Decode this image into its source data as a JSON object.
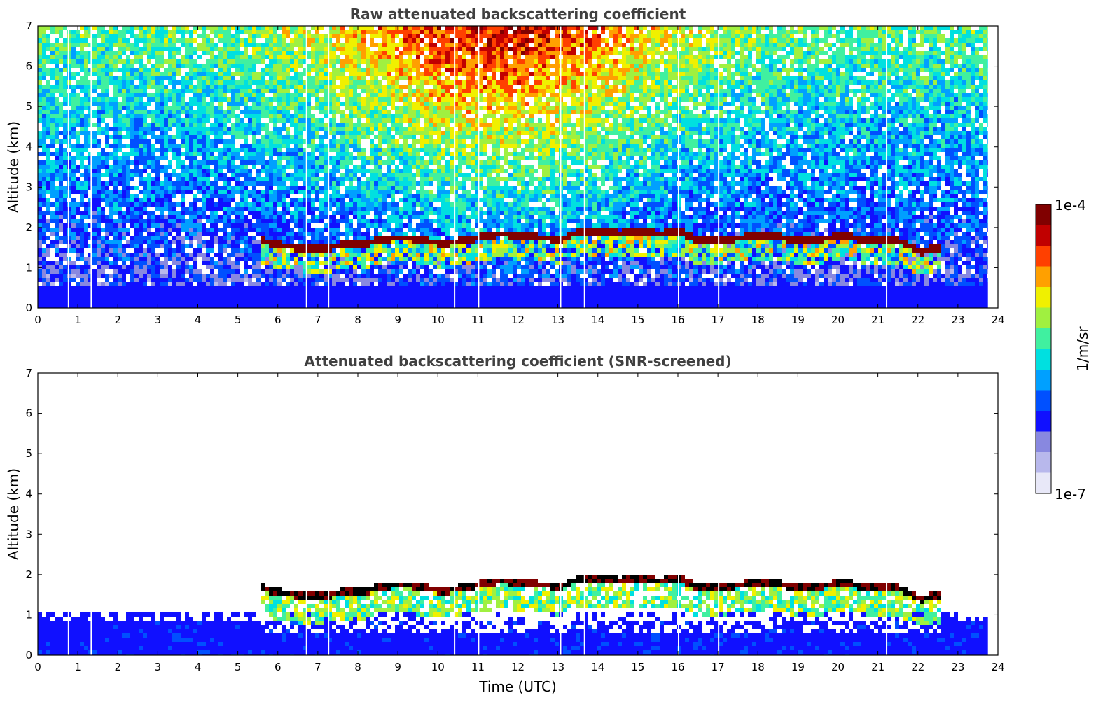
{
  "chart_data": [
    {
      "type": "heatmap",
      "title": "Raw attenuated backscattering coefficient",
      "xlabel": "",
      "ylabel": "Altitude (km)",
      "xlim": [
        0,
        24
      ],
      "ylim": [
        0,
        7
      ],
      "xticks": [
        "0",
        "1",
        "2",
        "3",
        "4",
        "5",
        "6",
        "7",
        "8",
        "9",
        "10",
        "11",
        "12",
        "13",
        "14",
        "15",
        "16",
        "17",
        "18",
        "19",
        "20",
        "21",
        "22",
        "23",
        "24"
      ],
      "yticks": [
        "0",
        "1",
        "2",
        "3",
        "4",
        "5",
        "6",
        "7"
      ],
      "data_end_time": 23.75,
      "data_gaps": [
        0.75,
        1.32,
        6.7,
        7.25,
        10.4,
        11.0,
        13.05,
        13.65,
        16.0,
        17.0,
        21.2
      ],
      "cloud_base_km": [
        {
          "t": 5.5,
          "alt": 1.75
        },
        {
          "t": 6.0,
          "alt": 1.6
        },
        {
          "t": 6.5,
          "alt": 1.55
        },
        {
          "t": 7.0,
          "alt": 1.5
        },
        {
          "t": 7.5,
          "alt": 1.6
        },
        {
          "t": 8.0,
          "alt": 1.6
        },
        {
          "t": 8.5,
          "alt": 1.75
        },
        {
          "t": 9.0,
          "alt": 1.8
        },
        {
          "t": 9.5,
          "alt": 1.75
        },
        {
          "t": 10.0,
          "alt": 1.65
        },
        {
          "t": 10.5,
          "alt": 1.7
        },
        {
          "t": 11.0,
          "alt": 1.8
        },
        {
          "t": 11.5,
          "alt": 1.9
        },
        {
          "t": 12.0,
          "alt": 1.85
        },
        {
          "t": 12.5,
          "alt": 1.8
        },
        {
          "t": 13.0,
          "alt": 1.75
        },
        {
          "t": 13.5,
          "alt": 1.95
        },
        {
          "t": 14.0,
          "alt": 1.95
        },
        {
          "t": 14.5,
          "alt": 1.9
        },
        {
          "t": 15.0,
          "alt": 1.95
        },
        {
          "t": 15.5,
          "alt": 1.9
        },
        {
          "t": 16.0,
          "alt": 1.95
        },
        {
          "t": 16.5,
          "alt": 1.7
        },
        {
          "t": 17.0,
          "alt": 1.7
        },
        {
          "t": 17.5,
          "alt": 1.8
        },
        {
          "t": 18.3,
          "alt": 1.85
        },
        {
          "t": 19.0,
          "alt": 1.7
        },
        {
          "t": 19.5,
          "alt": 1.75
        },
        {
          "t": 20.0,
          "alt": 1.85
        },
        {
          "t": 20.6,
          "alt": 1.75
        },
        {
          "t": 21.0,
          "alt": 1.75
        },
        {
          "t": 21.5,
          "alt": 1.7
        },
        {
          "t": 22.0,
          "alt": 1.45
        },
        {
          "t": 22.5,
          "alt": 1.55
        }
      ]
    },
    {
      "type": "heatmap",
      "title": "Attenuated backscattering coefficient (SNR-screened)",
      "xlabel": "Time (UTC)",
      "ylabel": "Altitude (km)",
      "xlim": [
        0,
        24
      ],
      "ylim": [
        0,
        7
      ],
      "xticks": [
        "0",
        "1",
        "2",
        "3",
        "4",
        "5",
        "6",
        "7",
        "8",
        "9",
        "10",
        "11",
        "12",
        "13",
        "14",
        "15",
        "16",
        "17",
        "18",
        "19",
        "20",
        "21",
        "22",
        "23",
        "24"
      ],
      "yticks": [
        "0",
        "1",
        "2",
        "3",
        "4",
        "5",
        "6",
        "7"
      ],
      "data_end_time": 23.75,
      "screened_top_km": 1.0
    }
  ],
  "colorbar": {
    "max_label": "1e-4",
    "min_label": "1e-7",
    "label": "1/m/sr",
    "scale": "log",
    "colors": [
      "#e8e8f8",
      "#b8b8ec",
      "#8888e0",
      "#1010ff",
      "#0050ff",
      "#00a0ff",
      "#00e0e0",
      "#40f0a0",
      "#a0f040",
      "#f0f000",
      "#ffa000",
      "#ff4000",
      "#c00000",
      "#800000"
    ]
  }
}
